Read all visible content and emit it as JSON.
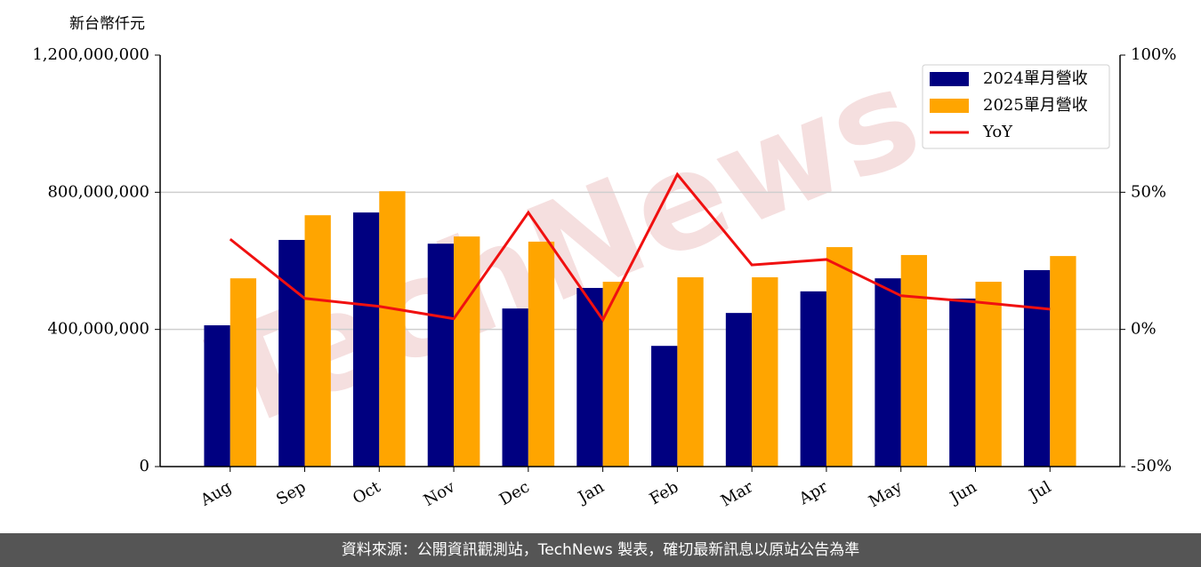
{
  "chart_data": {
    "type": "bar",
    "y_label": "新台幣仟元",
    "watermark": "TechNews",
    "categories": [
      "Aug",
      "Sep",
      "Oct",
      "Nov",
      "Dec",
      "Jan",
      "Feb",
      "Mar",
      "Apr",
      "May",
      "Jun",
      "Jul"
    ],
    "series": [
      {
        "name": "2024單月營收",
        "color": "#000080",
        "values": [
          412000000,
          661000000,
          741000000,
          650000000,
          461000000,
          521000000,
          352000000,
          448000000,
          511000000,
          549000000,
          490000000,
          573000000
        ]
      },
      {
        "name": "2025單月營收",
        "color": "#ffa500",
        "values": [
          549000000,
          733000000,
          803000000,
          671000000,
          656000000,
          539000000,
          552000000,
          552000000,
          640000000,
          617000000,
          539000000,
          614000000
        ]
      },
      {
        "name": "YoY",
        "color": "#f01010",
        "type": "line",
        "axis": "y2",
        "values": [
          32.9,
          11.3,
          8.4,
          3.9,
          42.6,
          3.5,
          56.5,
          23.5,
          25.5,
          12.3,
          10,
          7.4
        ]
      }
    ],
    "ylim": [
      0,
      1200000000
    ],
    "yticks": [
      0,
      {
        "value": 400000000,
        "label": "400,000,000"
      },
      {
        "value": 800000000,
        "label": "800,000,000"
      },
      {
        "value": 1200000000,
        "label": "1,200,000,000"
      }
    ],
    "y2lim": [
      -50,
      100
    ],
    "y2ticks": [
      {
        "value": -50,
        "label": "-50%"
      },
      {
        "value": 0,
        "label": "0%"
      },
      {
        "value": 50,
        "label": "50%"
      },
      {
        "value": 100,
        "label": "100%"
      }
    ],
    "grid": true,
    "legend": "upper right"
  },
  "footer": "資料來源：公開資訊觀測站，TechNews 製表，確切最新訊息以原站公告為準"
}
